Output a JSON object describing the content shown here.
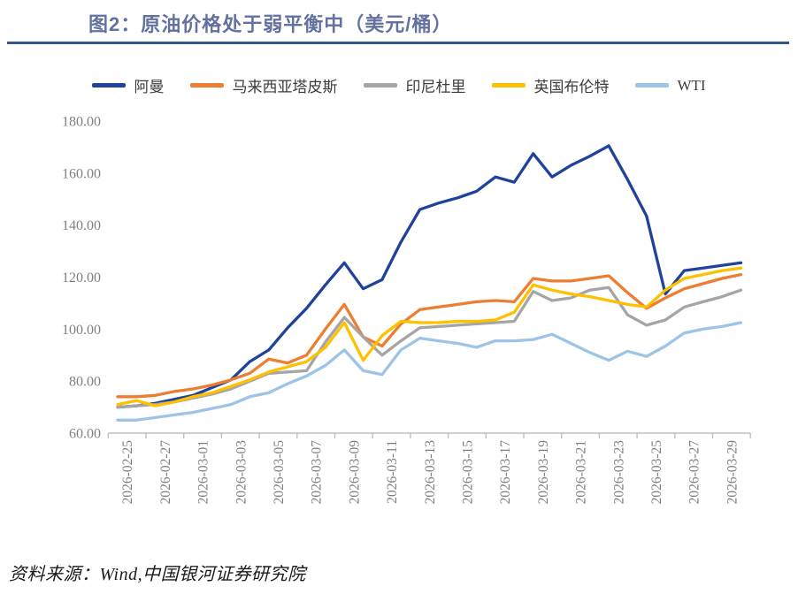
{
  "header": {
    "title": "图2：原油价格处于弱平衡中（美元/桶）"
  },
  "footer": {
    "source": "资料来源：Wind,中国银河证券研究院"
  },
  "chart_data": {
    "type": "line",
    "title": "原油价格处于弱平衡中（美元/桶）",
    "xlabel": "",
    "ylabel": "",
    "ylim": [
      60,
      180
    ],
    "grid": false,
    "legend_position": "top",
    "y_tick_labels": [
      "180.00",
      "160.00",
      "140.00",
      "120.00",
      "100.00",
      "80.00",
      "60.00"
    ],
    "y_ticks": [
      180,
      160,
      140,
      120,
      100,
      80,
      60
    ],
    "x": [
      "2026-02-25",
      "2026-02-26",
      "2026-02-27",
      "2026-02-28",
      "2026-03-01",
      "2026-03-02",
      "2026-03-03",
      "2026-03-04",
      "2026-03-05",
      "2026-03-06",
      "2026-03-07",
      "2026-03-08",
      "2026-03-09",
      "2026-03-10",
      "2026-03-11",
      "2026-03-12",
      "2026-03-13",
      "2026-03-14",
      "2026-03-15",
      "2026-03-16",
      "2026-03-17",
      "2026-03-18",
      "2026-03-19",
      "2026-03-20",
      "2026-03-21",
      "2026-03-22",
      "2026-03-23",
      "2026-03-24",
      "2026-03-25",
      "2026-03-26",
      "2026-03-27",
      "2026-03-28",
      "2026-03-29",
      "2026-03-30"
    ],
    "x_tick_labels": [
      "2026-02-25",
      "2026-02-27",
      "2026-03-01",
      "2026-03-03",
      "2026-03-05",
      "2026-03-07",
      "2026-03-09",
      "2026-03-11",
      "2026-03-13",
      "2026-03-15",
      "2026-03-17",
      "2026-03-19",
      "2026-03-21",
      "2026-03-23",
      "2026-03-25",
      "2026-03-27",
      "2026-03-29"
    ],
    "series": [
      {
        "name": "阿曼",
        "color": "#1F429B",
        "values": [
          70,
          70.5,
          71.5,
          73,
          74.5,
          77.5,
          80.5,
          87.5,
          92,
          100.5,
          108,
          117,
          125.5,
          115.5,
          119,
          133.5,
          146,
          148.5,
          150.5,
          153,
          158.5,
          156.5,
          167.5,
          158.5,
          163,
          166.5,
          170.5,
          157.5,
          143.5,
          113.5,
          122.5,
          123.5,
          124.5,
          125.5
        ]
      },
      {
        "name": "马来西亚塔皮斯",
        "color": "#ED7D31",
        "values": [
          74,
          74,
          74.5,
          76,
          77,
          78.5,
          80.5,
          83,
          88.5,
          87,
          90,
          100,
          109.5,
          97,
          93.5,
          102,
          107.5,
          108.5,
          109.5,
          110.5,
          111,
          110.5,
          119.5,
          118.5,
          118.5,
          119.5,
          120.5,
          114,
          108,
          112,
          115.5,
          117.5,
          119.5,
          121
        ]
      },
      {
        "name": "印尼杜里",
        "color": "#A5A5A5",
        "values": [
          70,
          70.5,
          71,
          72,
          73.5,
          75,
          77,
          80,
          83,
          83.5,
          84,
          95,
          104.5,
          97,
          90,
          95.5,
          100.5,
          101,
          101.5,
          102,
          102.5,
          103,
          114.5,
          111,
          112,
          115,
          116,
          105.5,
          101.5,
          103.5,
          108.5,
          110.5,
          112.5,
          115
        ]
      },
      {
        "name": "英国布伦特",
        "color": "#FFC000",
        "values": [
          71,
          72.5,
          70.5,
          72,
          74,
          75.5,
          78,
          80.5,
          83.5,
          85.5,
          87.5,
          93,
          102.5,
          88,
          97.5,
          103,
          102.5,
          102.5,
          103,
          103,
          103.5,
          106.5,
          117,
          115,
          113.5,
          112.5,
          111,
          109.5,
          108.5,
          115,
          119.5,
          121,
          122.5,
          123.5
        ]
      },
      {
        "name": "WTI",
        "color": "#9DC3E6",
        "values": [
          65,
          65,
          66,
          67,
          68,
          69.5,
          71,
          74,
          75.5,
          79,
          82,
          86,
          92,
          84,
          82.5,
          92,
          96.5,
          95.5,
          94.5,
          93,
          95.5,
          95.5,
          96,
          98,
          94.5,
          91,
          88,
          91.5,
          89.5,
          93.5,
          98.5,
          100,
          101,
          102.5
        ]
      }
    ]
  }
}
